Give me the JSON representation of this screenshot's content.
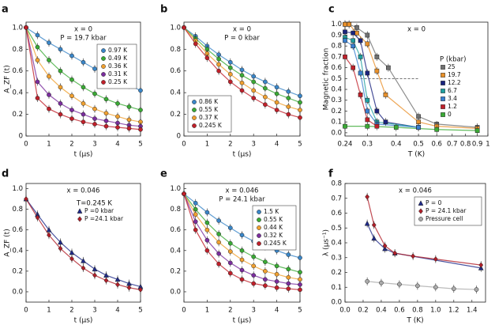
{
  "chart_data": [
    {
      "type": "scatter",
      "panel": "a",
      "annotations": [
        "x = 0",
        "P = 19.7 kbar"
      ],
      "xlabel": "t (µs)",
      "ylabel": "A_ZF (t)",
      "x": [
        0,
        0.5,
        1,
        1.5,
        2,
        2.5,
        3,
        3.5,
        4,
        4.5,
        5
      ],
      "xlim": [
        0,
        5
      ],
      "xticks": [
        0,
        1,
        2,
        3,
        4,
        5
      ],
      "ylim": [
        0,
        1.05
      ],
      "yticks": [
        0,
        0.2,
        0.4,
        0.6,
        0.8,
        {
          "value": 1,
          "label": "1.0"
        }
      ],
      "legend": "upper right",
      "series": [
        {
          "name": "0.97 K",
          "color": "#3a86c8",
          "marker": "circle",
          "values": [
            1.0,
            0.93,
            0.86,
            0.8,
            0.74,
            0.68,
            0.62,
            0.57,
            0.52,
            0.47,
            0.42
          ]
        },
        {
          "name": "0.49 K",
          "color": "#3aaa35",
          "marker": "circle",
          "values": [
            1.0,
            0.82,
            0.7,
            0.6,
            0.52,
            0.45,
            0.39,
            0.34,
            0.3,
            0.27,
            0.24
          ]
        },
        {
          "name": "0.36 K",
          "color": "#f0a030",
          "marker": "circle",
          "values": [
            1.0,
            0.7,
            0.55,
            0.45,
            0.37,
            0.3,
            0.25,
            0.21,
            0.18,
            0.15,
            0.13
          ]
        },
        {
          "name": "0.31 K",
          "color": "#7b2d9e",
          "marker": "circle",
          "values": [
            1.0,
            0.5,
            0.38,
            0.3,
            0.24,
            0.2,
            0.16,
            0.14,
            0.12,
            0.1,
            0.09
          ]
        },
        {
          "name": "0.25 K",
          "color": "#c0202a",
          "marker": "circle",
          "values": [
            1.0,
            0.35,
            0.25,
            0.2,
            0.16,
            0.13,
            0.11,
            0.09,
            0.08,
            0.07,
            0.06
          ]
        }
      ]
    },
    {
      "type": "scatter",
      "panel": "b",
      "annotations": [
        "x = 0",
        "P = 0 kbar"
      ],
      "xlabel": "t (µs)",
      "x": [
        0,
        0.5,
        1,
        1.5,
        2,
        2.5,
        3,
        3.5,
        4,
        4.5,
        5
      ],
      "xlim": [
        0,
        5
      ],
      "xticks": [
        0,
        1,
        2,
        3,
        4,
        5
      ],
      "ylim": [
        0,
        1.05
      ],
      "yticks": [
        0,
        0.2,
        0.4,
        0.6,
        0.8,
        {
          "value": 1,
          "label": "1.0"
        }
      ],
      "legend": "lower left",
      "series": [
        {
          "name": "0.86 K",
          "color": "#3a86c8",
          "marker": "circle",
          "values": [
            1.0,
            0.92,
            0.83,
            0.75,
            0.68,
            0.61,
            0.55,
            0.5,
            0.45,
            0.41,
            0.37
          ]
        },
        {
          "name": "0.55 K",
          "color": "#3aaa35",
          "marker": "circle",
          "values": [
            1.0,
            0.9,
            0.8,
            0.71,
            0.63,
            0.56,
            0.5,
            0.44,
            0.39,
            0.35,
            0.31
          ]
        },
        {
          "name": "0.37 K",
          "color": "#f0a030",
          "marker": "circle",
          "values": [
            1.0,
            0.88,
            0.76,
            0.66,
            0.57,
            0.49,
            0.42,
            0.36,
            0.31,
            0.27,
            0.24
          ]
        },
        {
          "name": "0.245 K",
          "color": "#c0202a",
          "marker": "circle",
          "values": [
            1.0,
            0.85,
            0.72,
            0.6,
            0.5,
            0.42,
            0.35,
            0.29,
            0.24,
            0.2,
            0.17
          ]
        }
      ]
    },
    {
      "type": "scatter",
      "panel": "c",
      "annotations": [
        "x = 0"
      ],
      "xlabel": "T (K)",
      "ylabel": "Magnetic fraction",
      "xscale": "log",
      "xlim": [
        0.24,
        1
      ],
      "xticks": [
        0.24,
        0.3,
        0.4,
        0.5,
        0.6,
        0.7,
        0.8,
        0.9,
        1
      ],
      "ylim": [
        -0.03,
        1.02
      ],
      "yticks": [
        {
          "value": 0,
          "label": "0.0"
        },
        0.1,
        0.2,
        0.3,
        0.4,
        0.5,
        0.6,
        0.7,
        0.8,
        0.9,
        {
          "value": 1,
          "label": "1.0"
        }
      ],
      "legend": "center right",
      "legend_title": "P (kbar)",
      "reference_line": {
        "y": 0.5,
        "x": [
          0.28,
          0.5
        ]
      },
      "series": [
        {
          "name": "25",
          "color": "#707070",
          "marker": "square",
          "x": [
            0.24,
            0.25,
            0.27,
            0.3,
            0.33,
            0.37,
            0.5,
            0.6,
            0.9
          ],
          "values": [
            1.0,
            1.0,
            0.97,
            0.9,
            0.7,
            0.6,
            0.15,
            0.08,
            0.05
          ]
        },
        {
          "name": "19.7",
          "color": "#e8902a",
          "marker": "square",
          "x": [
            0.24,
            0.25,
            0.27,
            0.3,
            0.33,
            0.36,
            0.5,
            0.6,
            0.9
          ],
          "values": [
            1.0,
            1.0,
            0.92,
            0.82,
            0.57,
            0.35,
            0.1,
            0.06,
            0.04
          ]
        },
        {
          "name": "12.2",
          "color": "#1a237e",
          "marker": "square",
          "x": [
            0.24,
            0.26,
            0.28,
            0.3,
            0.33,
            0.36,
            0.5
          ],
          "values": [
            0.93,
            0.92,
            0.85,
            0.55,
            0.2,
            0.1,
            0.05
          ]
        },
        {
          "name": "6.7",
          "color": "#20a0a0",
          "marker": "square",
          "x": [
            0.24,
            0.26,
            0.28,
            0.3,
            0.33,
            0.5
          ],
          "values": [
            0.88,
            0.85,
            0.7,
            0.3,
            0.1,
            0.05
          ]
        },
        {
          "name": "3.4",
          "color": "#3a7fd0",
          "marker": "square",
          "x": [
            0.24,
            0.26,
            0.28,
            0.3,
            0.33,
            0.5
          ],
          "values": [
            0.85,
            0.8,
            0.55,
            0.2,
            0.08,
            0.05
          ]
        },
        {
          "name": "1.2",
          "color": "#c0202a",
          "marker": "square",
          "x": [
            0.24,
            0.26,
            0.28,
            0.3,
            0.33
          ],
          "values": [
            0.7,
            0.6,
            0.35,
            0.12,
            0.06
          ]
        },
        {
          "name": "0",
          "color": "#3aaa35",
          "marker": "square",
          "x": [
            0.24,
            0.3,
            0.4,
            0.6,
            0.9
          ],
          "values": [
            0.06,
            0.06,
            0.05,
            0.03,
            0.02
          ]
        }
      ]
    },
    {
      "type": "scatter",
      "panel": "d",
      "annotations": [
        "x = 0.046"
      ],
      "xlabel": "t (µs)",
      "ylabel": "A_ZF (t)",
      "x": [
        0,
        0.5,
        1,
        1.5,
        2,
        2.5,
        3,
        3.5,
        4,
        4.5,
        5
      ],
      "xlim": [
        0,
        5
      ],
      "xticks": [
        0,
        1,
        2,
        3,
        4,
        5
      ],
      "ylim": [
        -0.1,
        1.05
      ],
      "yticks": [
        {
          "value": 0,
          "label": "0.0"
        },
        0.2,
        0.4,
        0.6,
        0.8,
        {
          "value": 1,
          "label": "1.0"
        }
      ],
      "legend": "upper right",
      "legend_title": "T=0.245 K",
      "series": [
        {
          "name": "P =0 kbar",
          "color": "#1f2a8a",
          "marker": "triangle",
          "values": [
            0.9,
            0.75,
            0.6,
            0.48,
            0.38,
            0.3,
            0.22,
            0.16,
            0.12,
            0.08,
            0.05
          ]
        },
        {
          "name": "P =24.1 kbar",
          "color": "#b01e28",
          "marker": "diamond",
          "values": [
            0.9,
            0.72,
            0.55,
            0.42,
            0.32,
            0.23,
            0.16,
            0.11,
            0.07,
            0.04,
            0.02
          ]
        }
      ]
    },
    {
      "type": "scatter",
      "panel": "e",
      "annotations": [
        "x = 0.046",
        "P = 24.1 kbar"
      ],
      "xlabel": "t (µs)",
      "x": [
        0,
        0.5,
        1,
        1.5,
        2,
        2.5,
        3,
        3.5,
        4,
        4.5,
        5
      ],
      "xlim": [
        0,
        5
      ],
      "xticks": [
        0,
        1,
        2,
        3,
        4,
        5
      ],
      "ylim": [
        -0.1,
        1.05
      ],
      "yticks": [
        {
          "value": 0,
          "label": "0.0"
        },
        0.2,
        0.4,
        0.6,
        0.8,
        {
          "value": 1,
          "label": "1.0"
        }
      ],
      "legend": "upper right",
      "series": [
        {
          "name": "1.5 K",
          "color": "#3a86c8",
          "marker": "circle",
          "values": [
            0.95,
            0.86,
            0.77,
            0.69,
            0.62,
            0.55,
            0.49,
            0.44,
            0.4,
            0.36,
            0.33
          ]
        },
        {
          "name": "0.55 K",
          "color": "#3aaa35",
          "marker": "circle",
          "values": [
            0.95,
            0.8,
            0.67,
            0.56,
            0.47,
            0.4,
            0.34,
            0.29,
            0.25,
            0.22,
            0.19
          ]
        },
        {
          "name": "0.44 K",
          "color": "#f0a030",
          "marker": "circle",
          "values": [
            0.95,
            0.75,
            0.6,
            0.48,
            0.39,
            0.31,
            0.25,
            0.2,
            0.17,
            0.14,
            0.12
          ]
        },
        {
          "name": "0.32 K",
          "color": "#7b2d9e",
          "marker": "circle",
          "values": [
            0.95,
            0.68,
            0.5,
            0.37,
            0.28,
            0.21,
            0.16,
            0.12,
            0.1,
            0.08,
            0.07
          ]
        },
        {
          "name": "0.245 K",
          "color": "#c0202a",
          "marker": "circle",
          "values": [
            0.95,
            0.6,
            0.4,
            0.27,
            0.18,
            0.12,
            0.08,
            0.06,
            0.04,
            0.03,
            0.02
          ]
        }
      ]
    },
    {
      "type": "scatter",
      "panel": "f",
      "annotations": [
        "x = 0.046"
      ],
      "xlabel": "T (K)",
      "ylabel": "λ (µs⁻¹)",
      "xlim": [
        0,
        1.55
      ],
      "xticks": [
        {
          "value": 0,
          "label": "0.0"
        },
        0.2,
        0.4,
        0.6,
        0.8,
        {
          "value": 1,
          "label": "1.0"
        },
        1.2,
        1.4
      ],
      "ylim": [
        0,
        0.8
      ],
      "yticks": [
        {
          "value": 0,
          "label": "0.0"
        },
        0.1,
        0.2,
        0.3,
        0.4,
        0.5,
        0.6,
        0.7,
        0.8
      ],
      "legend": "upper right",
      "series": [
        {
          "name": "P = 0",
          "color": "#1f2a8a",
          "marker": "triangle",
          "x": [
            0.245,
            0.32,
            0.44,
            0.55,
            1.5
          ],
          "values": [
            0.53,
            0.43,
            0.36,
            0.33,
            0.23
          ]
        },
        {
          "name": "P = 24.1 kbar",
          "color": "#b01e28",
          "marker": "diamond",
          "x": [
            0.245,
            0.32,
            0.44,
            0.55,
            0.75,
            1.0,
            1.5
          ],
          "values": [
            0.71,
            0.52,
            0.38,
            0.33,
            0.31,
            0.29,
            0.25
          ]
        },
        {
          "name": "Pressure cell",
          "color": "#aaaaaa",
          "marker": "circle",
          "x": [
            0.245,
            0.4,
            0.6,
            0.8,
            1.0,
            1.2,
            1.45
          ],
          "values": [
            0.14,
            0.13,
            0.12,
            0.11,
            0.1,
            0.09,
            0.085
          ]
        }
      ]
    }
  ]
}
